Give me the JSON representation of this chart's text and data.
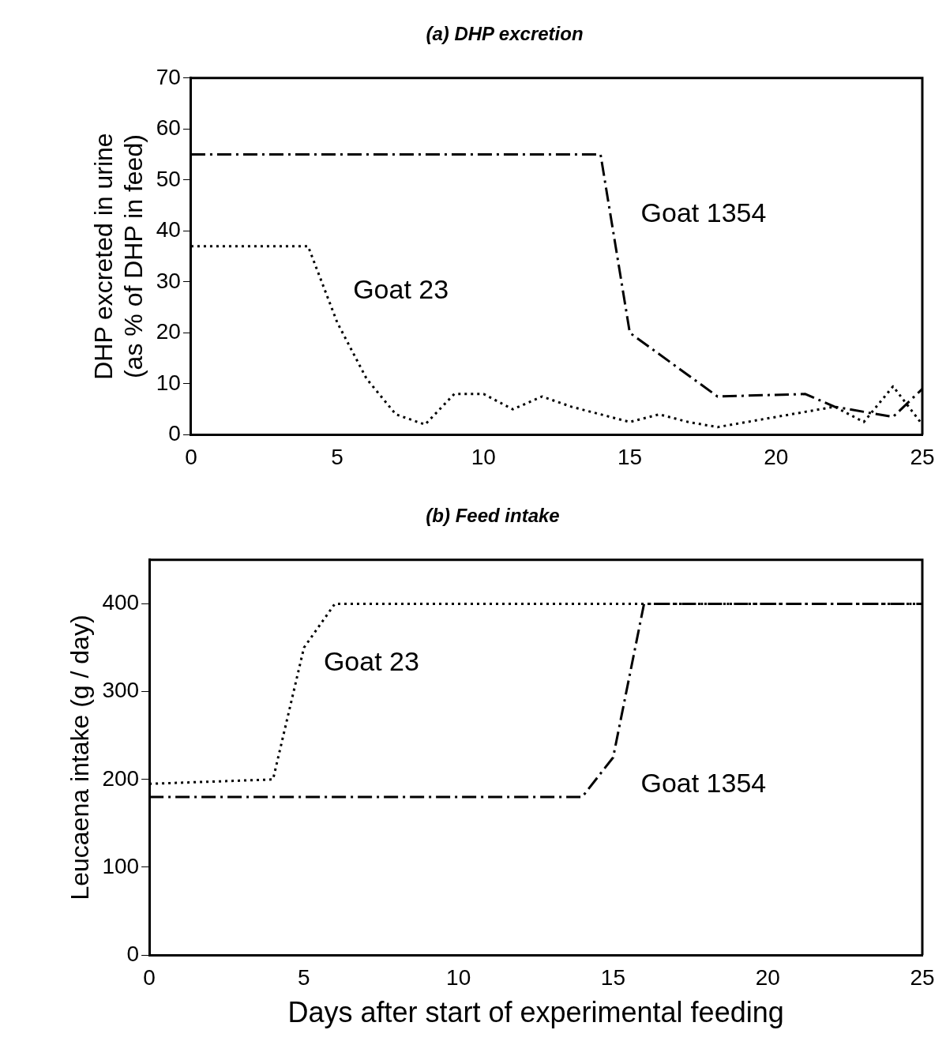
{
  "chart_data": [
    {
      "type": "line",
      "title": "(a) DHP excretion",
      "ylabel": "DHP excreted in urine\n(as % of DHP in feed)",
      "xlim": [
        0,
        25
      ],
      "xticks": [
        0,
        5,
        10,
        15,
        20,
        25
      ],
      "ylim": [
        0,
        70
      ],
      "yticks": [
        0,
        10,
        20,
        30,
        40,
        50,
        60,
        70
      ],
      "grid": false,
      "legend": false,
      "marker": "none",
      "series": [
        {
          "name": "Goat 1354",
          "color": "#000000",
          "line_style": "dashed",
          "x": [
            0,
            14,
            15,
            18,
            21,
            22,
            23,
            24,
            25
          ],
          "values": [
            55,
            55,
            20,
            7.5,
            8,
            5.5,
            4.5,
            3.5,
            9
          ]
        },
        {
          "name": "Goat 23",
          "color": "#000000",
          "line_style": "dotted",
          "x": [
            0,
            4,
            5,
            6,
            7,
            8,
            9,
            10,
            11,
            12,
            13,
            14,
            15,
            16,
            17,
            18,
            19,
            20,
            21,
            22,
            23,
            24,
            25
          ],
          "values": [
            37,
            37,
            22,
            11,
            4,
            2,
            8,
            8,
            5,
            7.5,
            5.5,
            4,
            2.5,
            4,
            2.5,
            1.5,
            2.5,
            3.5,
            4.5,
            5.5,
            2.5,
            9.5,
            2
          ]
        }
      ]
    },
    {
      "type": "line",
      "title": "(b) Feed intake",
      "xlabel": "Days after start of experimental feeding",
      "ylabel": "Leucaena intake (g / day)",
      "xlim": [
        0,
        25
      ],
      "xticks": [
        0,
        5,
        10,
        15,
        20,
        25
      ],
      "ylim": [
        0,
        450
      ],
      "yticks": [
        0,
        100,
        200,
        300,
        400
      ],
      "grid": false,
      "legend": false,
      "marker": "none",
      "series": [
        {
          "name": "Goat 23",
          "color": "#000000",
          "line_style": "dotted",
          "x": [
            0,
            4,
            5,
            6,
            25
          ],
          "values": [
            195,
            200,
            350,
            400,
            400
          ]
        },
        {
          "name": "Goat 1354",
          "color": "#000000",
          "line_style": "dashed",
          "x": [
            0,
            14,
            15,
            16,
            25
          ],
          "values": [
            180,
            180,
            225,
            400,
            400
          ]
        }
      ]
    }
  ]
}
